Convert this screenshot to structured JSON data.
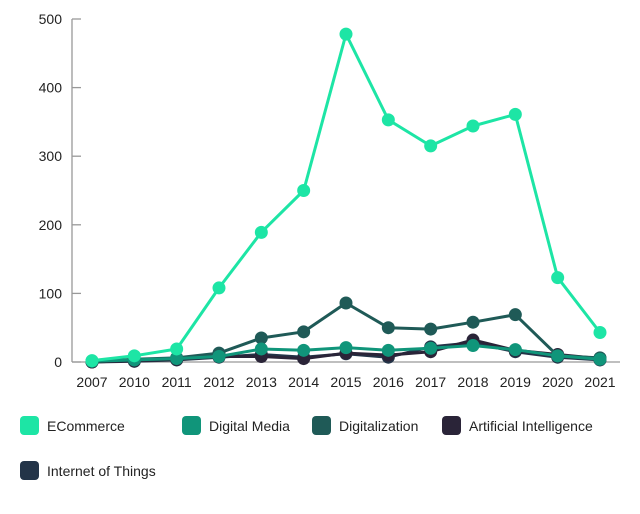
{
  "chart_data": {
    "type": "line",
    "title": "",
    "xlabel": "",
    "ylabel": "",
    "categories": [
      "2007",
      "2010",
      "2011",
      "2012",
      "2013",
      "2014",
      "2015",
      "2016",
      "2017",
      "2018",
      "2019",
      "2020",
      "2021"
    ],
    "y_ticks": [
      "0",
      "100",
      "200",
      "300",
      "400",
      "500"
    ],
    "ylim": [
      0,
      500
    ],
    "grid": false,
    "legend_position": "bottom",
    "series": [
      {
        "name": "ECommerce",
        "color": "#1de5a5",
        "values": [
          2,
          9,
          19,
          108,
          189,
          250,
          478,
          353,
          315,
          344,
          361,
          123,
          43
        ]
      },
      {
        "name": "Digital Media",
        "color": "#10957a",
        "values": [
          1,
          3,
          5,
          8,
          19,
          17,
          21,
          17,
          20,
          24,
          18,
          9,
          4
        ]
      },
      {
        "name": "Digitalization",
        "color": "#1f5a57",
        "values": [
          1,
          4,
          6,
          13,
          35,
          44,
          86,
          50,
          48,
          58,
          69,
          9,
          6
        ]
      },
      {
        "name": "Artificial Intelligence",
        "color": "#2a2438",
        "values": [
          0,
          2,
          4,
          8,
          8,
          5,
          13,
          10,
          15,
          32,
          17,
          11,
          5
        ]
      },
      {
        "name": "Internet of Things",
        "color": "#233448",
        "values": [
          0,
          1,
          3,
          7,
          11,
          7,
          12,
          7,
          22,
          28,
          15,
          7,
          3
        ]
      }
    ]
  }
}
